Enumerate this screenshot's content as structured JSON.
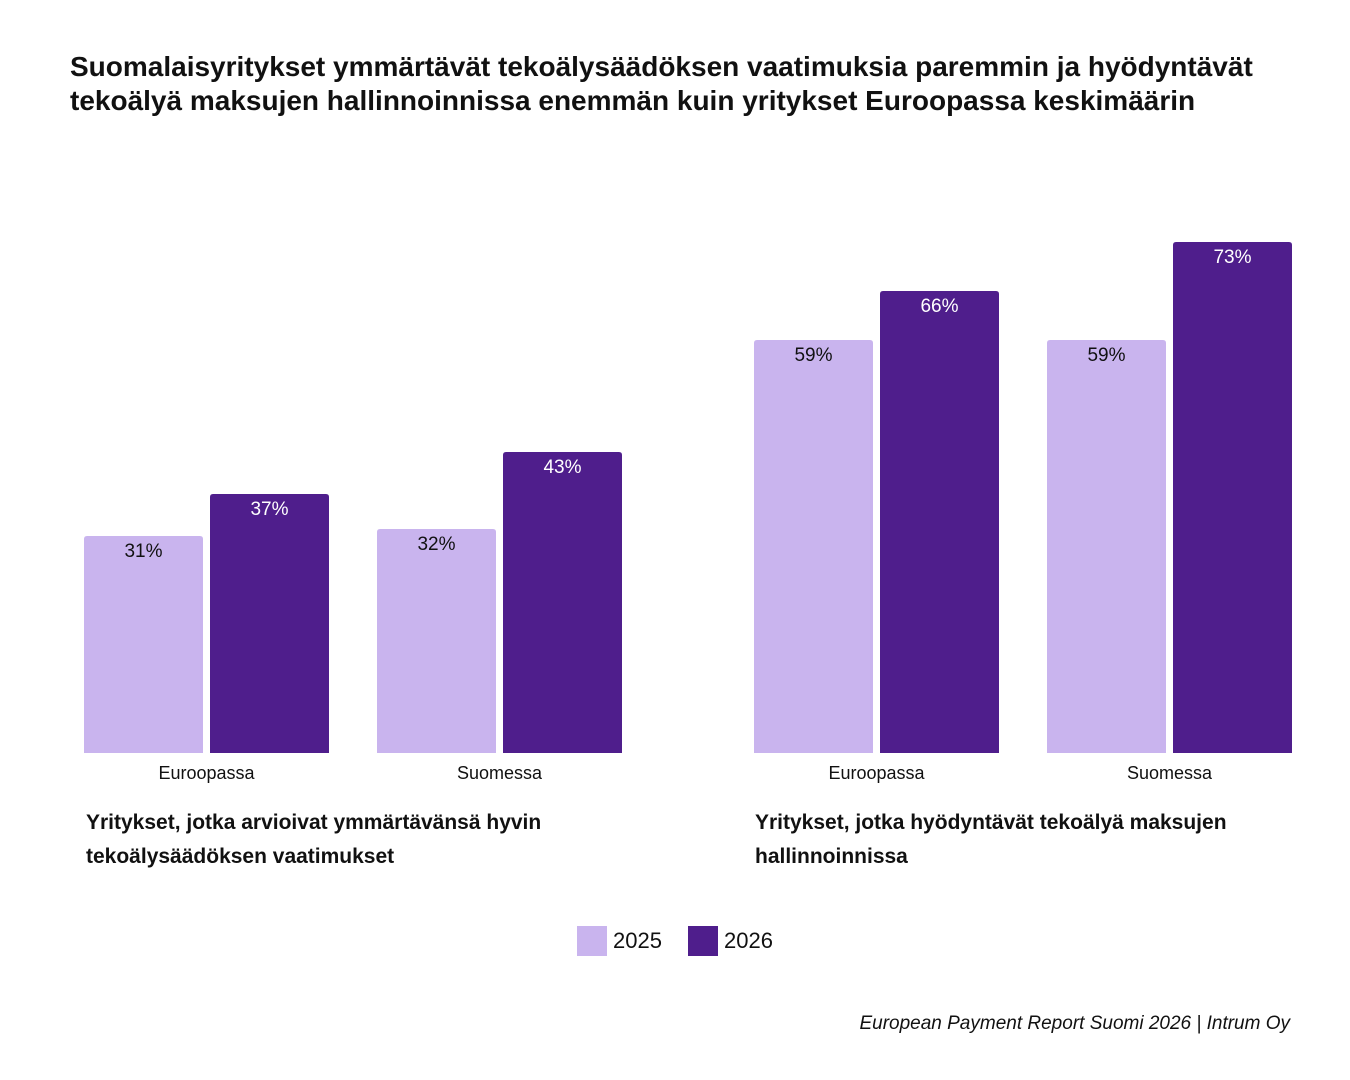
{
  "title": "Suomalaisyritykset ymmärtävät tekoälysäädöksen vaatimuksia paremmin ja hyödyntävät tekoälyä maksujen hallinnoinnissa enemmän kuin yritykset Euroopassa keskimäärin",
  "source": "European Payment Report Suomi 2026 | Intrum Oy",
  "colors": {
    "s2025": "#c9b4ee",
    "s2026": "#4f1e8c",
    "label_dark": "#111111",
    "label_light": "#ffffff"
  },
  "legend": [
    {
      "label": "2025",
      "color": "#c9b4ee"
    },
    {
      "label": "2026",
      "color": "#4f1e8c"
    }
  ],
  "chart_data": [
    {
      "type": "bar",
      "title": "Yritykset, jotka arvioivat ymmärtävänsä hyvin tekoälysäädöksen vaatimukset",
      "categories": [
        "Euroopassa",
        "Suomessa"
      ],
      "series": [
        {
          "name": "2025",
          "values": [
            31,
            32
          ],
          "labels": [
            "31%",
            "32%"
          ]
        },
        {
          "name": "2026",
          "values": [
            37,
            43
          ],
          "labels": [
            "37%",
            "43%"
          ]
        }
      ],
      "ylim": [
        0,
        100
      ],
      "grid": false,
      "legend_position": "bottom-center"
    },
    {
      "type": "bar",
      "title": "Yritykset, jotka hyödyntävät tekoälyä maksujen hallinnoinnissa",
      "categories": [
        "Euroopassa",
        "Suomessa"
      ],
      "series": [
        {
          "name": "2025",
          "values": [
            59,
            59
          ],
          "labels": [
            "59%",
            "59%"
          ]
        },
        {
          "name": "2026",
          "values": [
            66,
            73
          ],
          "labels": [
            "66%",
            "73%"
          ]
        }
      ],
      "ylim": [
        0,
        100
      ],
      "grid": false,
      "legend_position": "bottom-center"
    }
  ]
}
